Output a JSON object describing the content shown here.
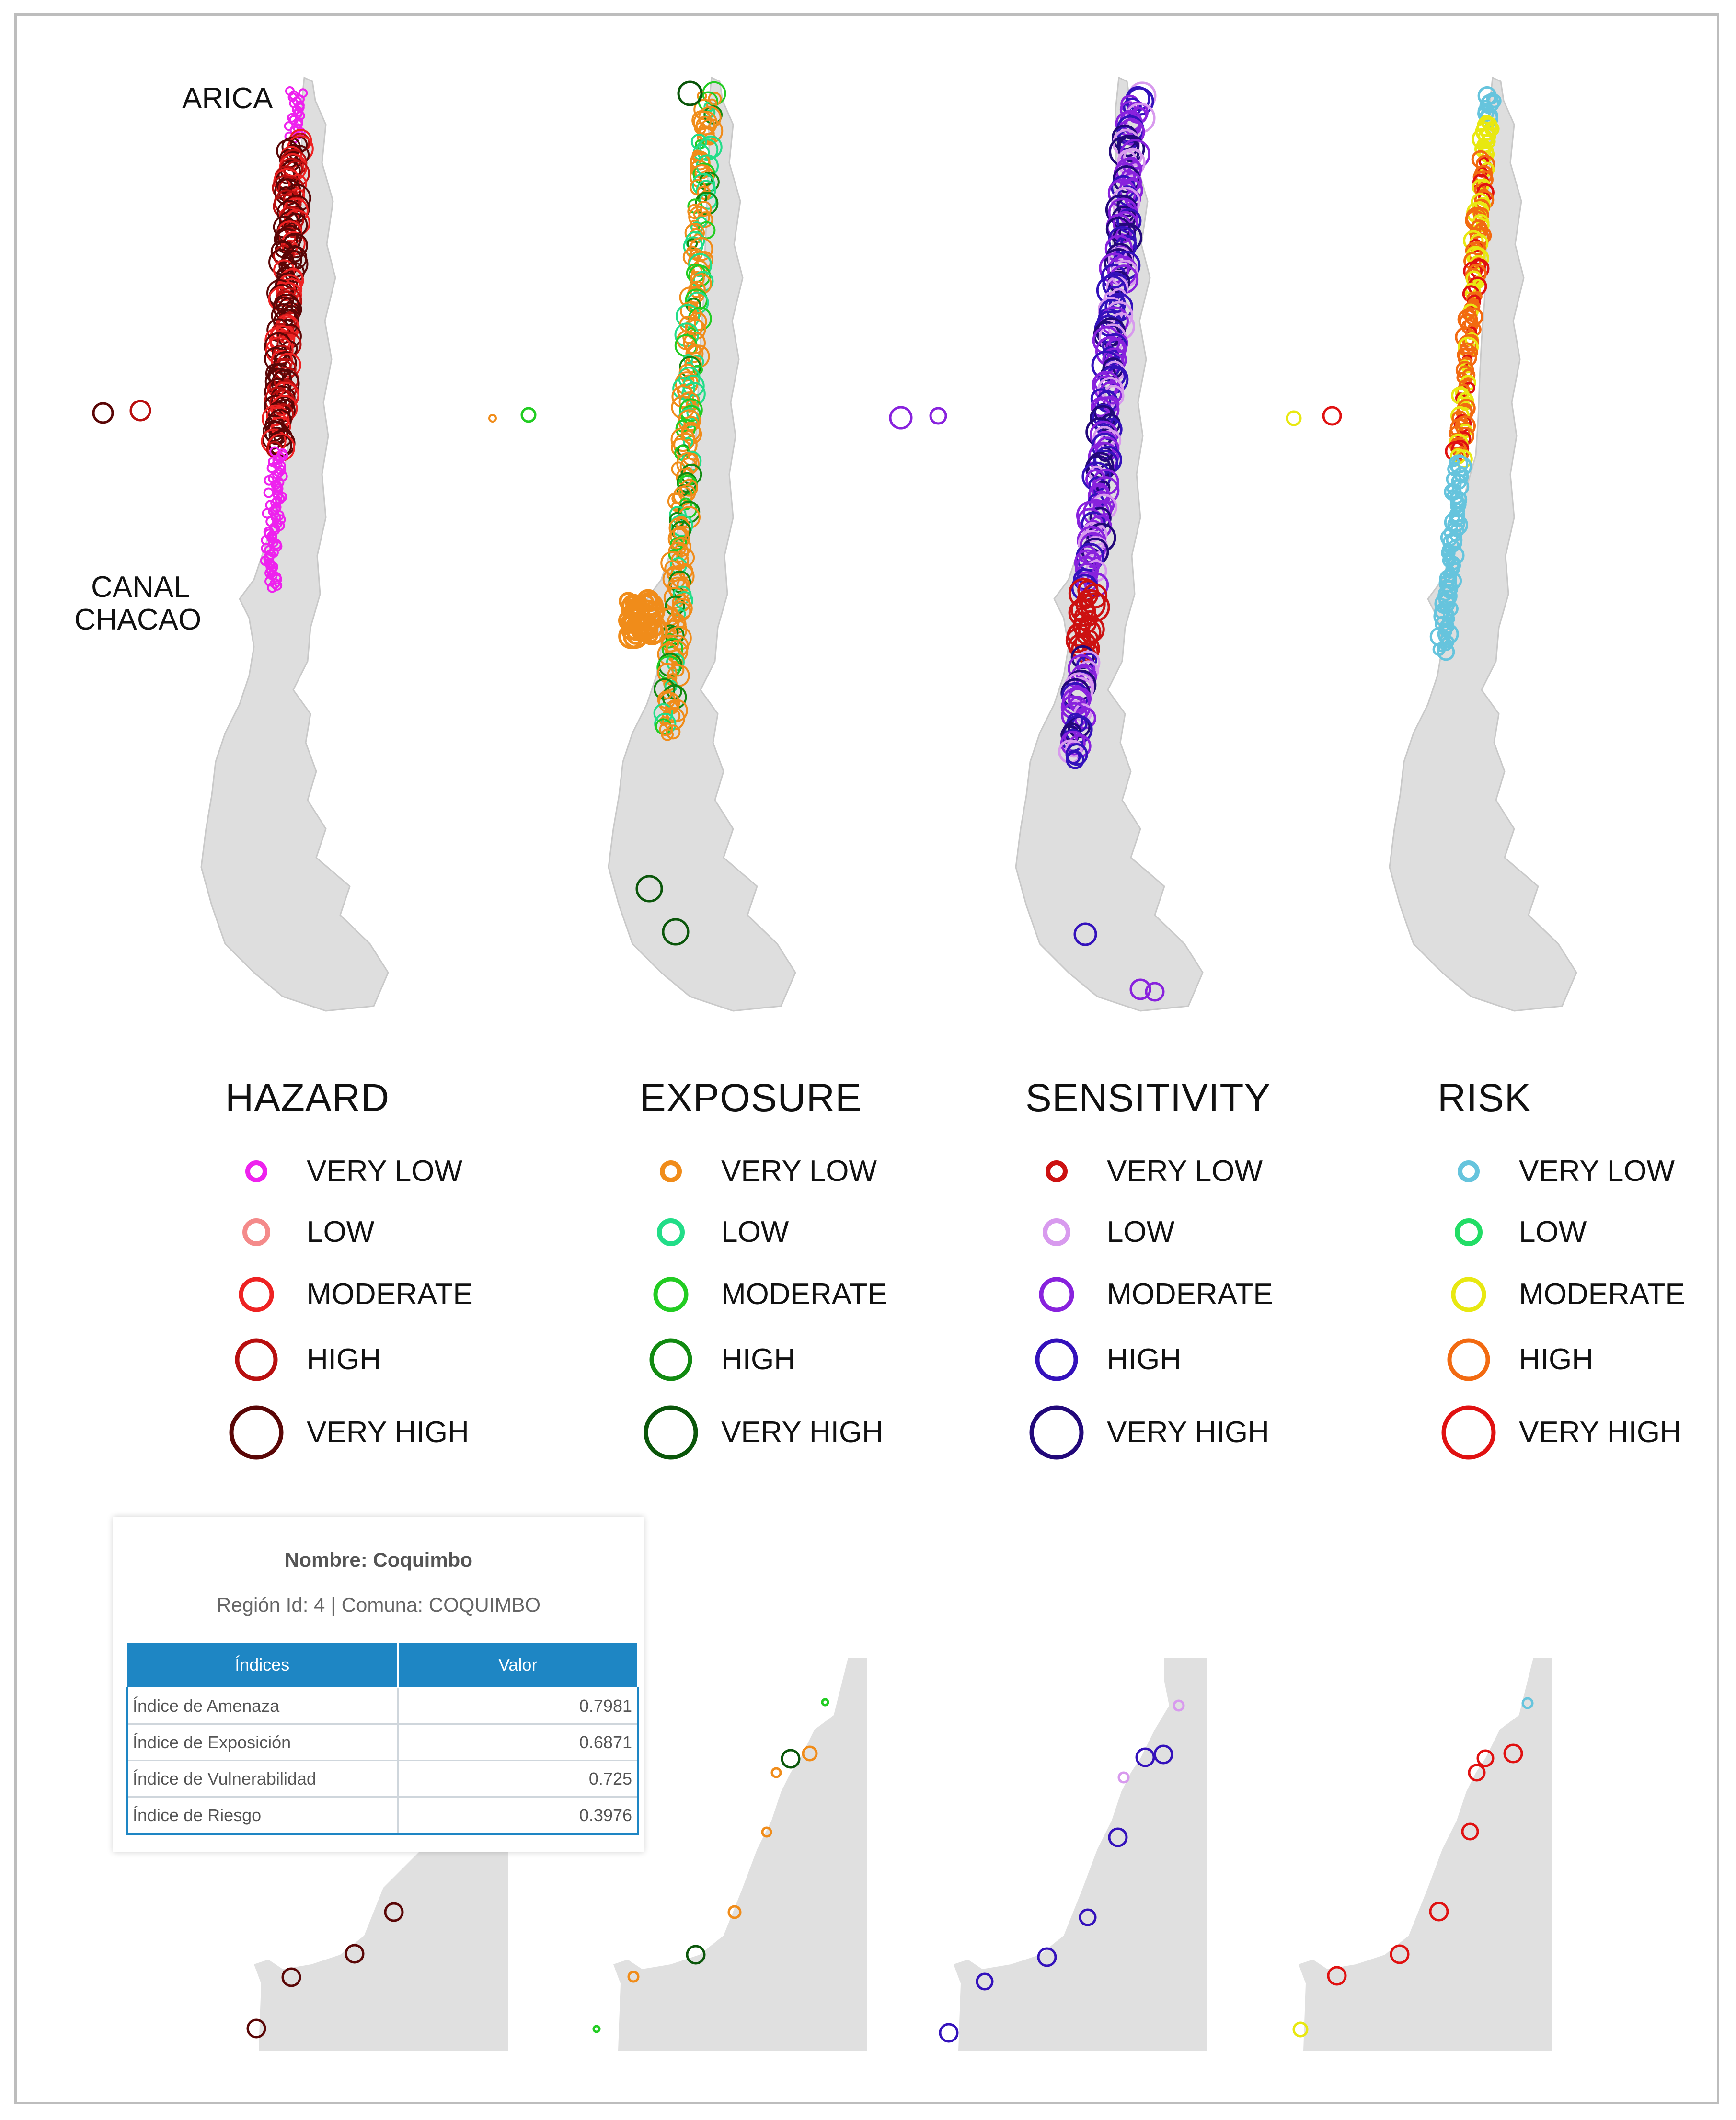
{
  "labels": {
    "arica": "ARICA",
    "canal_line1": "CANAL",
    "canal_line2": "CHACAO"
  },
  "panels": [
    {
      "id": "hazard",
      "title": "HAZARD",
      "levels": [
        {
          "label": "VERY LOW",
          "color": "#ee22ee"
        },
        {
          "label": "LOW",
          "color": "#f48a8a"
        },
        {
          "label": "MODERATE",
          "color": "#ee2222"
        },
        {
          "label": "HIGH",
          "color": "#b80f0f"
        },
        {
          "label": "VERY HIGH",
          "color": "#5a0606"
        }
      ]
    },
    {
      "id": "exposure",
      "title": "EXPOSURE",
      "levels": [
        {
          "label": "VERY LOW",
          "color": "#f08c1a"
        },
        {
          "label": "LOW",
          "color": "#22dd88"
        },
        {
          "label": "MODERATE",
          "color": "#22cc22"
        },
        {
          "label": "HIGH",
          "color": "#118a11"
        },
        {
          "label": "VERY HIGH",
          "color": "#0a560a"
        }
      ]
    },
    {
      "id": "sensitivity",
      "title": "SENSITIVITY",
      "levels": [
        {
          "label": "VERY LOW",
          "color": "#cc1111"
        },
        {
          "label": "LOW",
          "color": "#d89aee"
        },
        {
          "label": "MODERATE",
          "color": "#8822dd"
        },
        {
          "label": "HIGH",
          "color": "#3311bb"
        },
        {
          "label": "VERY HIGH",
          "color": "#22087a"
        }
      ]
    },
    {
      "id": "risk",
      "title": "RISK",
      "levels": [
        {
          "label": "VERY LOW",
          "color": "#66c4dd"
        },
        {
          "label": "LOW",
          "color": "#22dd66"
        },
        {
          "label": "MODERATE",
          "color": "#e8e811"
        },
        {
          "label": "HIGH",
          "color": "#f26a11"
        },
        {
          "label": "VERY HIGH",
          "color": "#e01111"
        }
      ]
    }
  ],
  "popup": {
    "title": "Nombre: Coquimbo",
    "subtitle": "Región Id: 4  |  Comuna: COQUIMBO",
    "col_indices": "Índices",
    "col_valor": "Valor",
    "rows": [
      {
        "name": "Índice de Amenaza",
        "value": "0.7981"
      },
      {
        "name": "Índice de Exposición",
        "value": "0.6871"
      },
      {
        "name": "Índice de Vulnerabilidad",
        "value": "0.725"
      },
      {
        "name": "Índice de Riesgo",
        "value": "0.3976"
      }
    ]
  }
}
